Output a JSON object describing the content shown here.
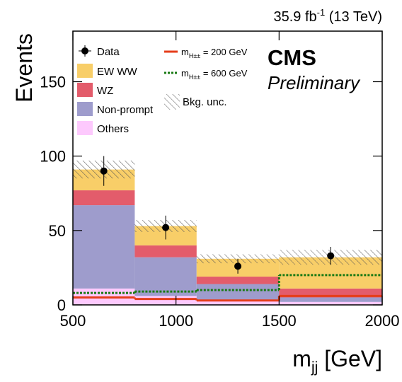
{
  "chart_data": {
    "type": "stacked_histogram",
    "lumi_label": [
      "35.9 fb",
      "-1",
      " (13 TeV)"
    ],
    "experiment": "CMS",
    "status": "Preliminary",
    "y_label": "Events",
    "x_label": [
      "m",
      "jj",
      " [GeV]"
    ],
    "bins": [
      500,
      800,
      1100,
      1500,
      2000
    ],
    "xlim": [
      500,
      2000
    ],
    "ylim": [
      0,
      184
    ],
    "xticks": [
      500,
      1000,
      1500,
      2000
    ],
    "yticks": [
      0,
      50,
      100,
      150
    ],
    "series": [
      {
        "name": "EW WW",
        "color": "#f8ce68",
        "values": [
          14,
          13,
          12,
          21
        ]
      },
      {
        "name": "WZ",
        "color": "#e35c6b",
        "values": [
          10,
          8,
          5,
          6
        ]
      },
      {
        "name": "Non-prompt",
        "color": "#9e9ccc",
        "values": [
          56,
          26,
          11,
          3
        ]
      },
      {
        "name": "Others",
        "color": "#fdc9fd",
        "values": [
          11,
          6,
          3,
          2
        ]
      }
    ],
    "uncertainty": {
      "name": "Bkg. unc.",
      "values": [
        6,
        4,
        3,
        5
      ]
    },
    "data": {
      "name": "Data",
      "x": [
        650,
        950,
        1300,
        1750
      ],
      "values": [
        90,
        52,
        26,
        33
      ],
      "errors": [
        10,
        8,
        5,
        6
      ]
    },
    "signals": [
      {
        "name": [
          "m",
          "H±±",
          " = 200 GeV"
        ],
        "color": "#e53e1b",
        "style": "solid",
        "values": [
          5,
          4,
          3,
          6
        ]
      },
      {
        "name": [
          "m",
          "H±±",
          " = 600 GeV"
        ],
        "color": "#1a7a14",
        "style": "dotted",
        "values": [
          8,
          9,
          10,
          20
        ]
      }
    ]
  }
}
